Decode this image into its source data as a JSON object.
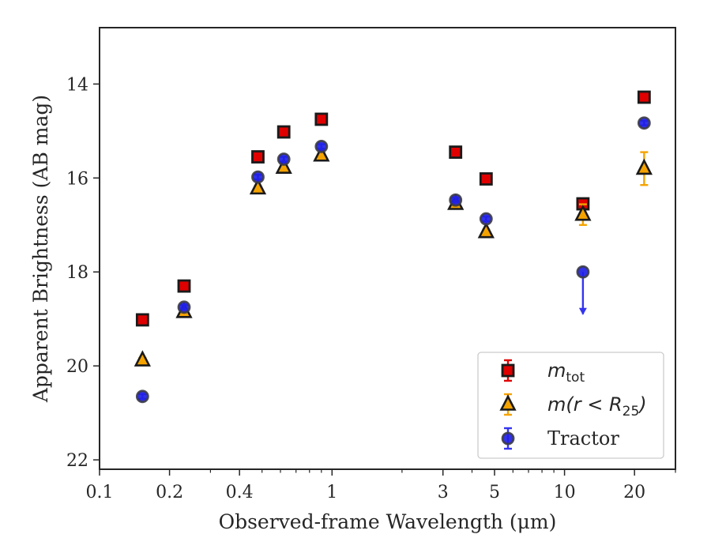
{
  "chart_data": {
    "type": "scatter",
    "xlabel": "Observed-frame Wavelength (μm)",
    "ylabel": "Apparent Brightness (AB mag)",
    "x_scale": "log",
    "y_inverted": true,
    "xlim": [
      0.1,
      30
    ],
    "ylim": [
      22.2,
      12.8
    ],
    "x_ticks": [
      {
        "value": 0.1,
        "label": "0.1"
      },
      {
        "value": 0.2,
        "label": "0.2"
      },
      {
        "value": 0.4,
        "label": "0.4"
      },
      {
        "value": 1,
        "label": "1"
      },
      {
        "value": 3,
        "label": "3"
      },
      {
        "value": 5,
        "label": "5"
      },
      {
        "value": 10,
        "label": "10"
      },
      {
        "value": 20,
        "label": "20"
      }
    ],
    "x_minor_ticks": [
      0.3,
      0.5,
      0.6,
      0.7,
      0.8,
      0.9,
      2,
      4,
      6,
      7,
      8,
      9,
      30
    ],
    "y_ticks": [
      {
        "value": 14,
        "label": "14"
      },
      {
        "value": 16,
        "label": "16"
      },
      {
        "value": 18,
        "label": "18"
      },
      {
        "value": 20,
        "label": "20"
      },
      {
        "value": 22,
        "label": "22"
      }
    ],
    "legend_position": "lower-right",
    "series": [
      {
        "key": "mtot",
        "legend": {
          "main": "m",
          "sub": "tot"
        },
        "marker": "square",
        "fill": "#e00000",
        "edge": "#1a1a1a",
        "errcolor": "#e00000",
        "points": [
          {
            "x": 0.153,
            "y": 19.02,
            "err": 0.05
          },
          {
            "x": 0.231,
            "y": 18.3,
            "err": 0.05
          },
          {
            "x": 0.48,
            "y": 15.55,
            "err": 0.05
          },
          {
            "x": 0.62,
            "y": 15.02,
            "err": 0.05
          },
          {
            "x": 0.9,
            "y": 14.75,
            "err": 0.05
          },
          {
            "x": 3.4,
            "y": 15.45,
            "err": 0.05
          },
          {
            "x": 4.6,
            "y": 16.02,
            "err": 0.05
          },
          {
            "x": 12.0,
            "y": 16.55,
            "err": 0.05
          },
          {
            "x": 22.0,
            "y": 14.28,
            "err": 0.05
          }
        ]
      },
      {
        "key": "mr25",
        "legend": {
          "main": "m(r < R",
          "sub": "25",
          "end": ")"
        },
        "marker": "triangle",
        "fill": "#f5a300",
        "edge": "#1a1a1a",
        "errcolor": "#f5a300",
        "points": [
          {
            "x": 0.153,
            "y": 19.88,
            "err": 0.05
          },
          {
            "x": 0.231,
            "y": 18.85,
            "err": 0.05
          },
          {
            "x": 0.48,
            "y": 16.22,
            "err": 0.05
          },
          {
            "x": 0.62,
            "y": 15.78,
            "err": 0.05
          },
          {
            "x": 0.9,
            "y": 15.52,
            "err": 0.05
          },
          {
            "x": 3.4,
            "y": 16.55,
            "err": 0.05
          },
          {
            "x": 4.6,
            "y": 17.15,
            "err": 0.05
          },
          {
            "x": 12.0,
            "y": 16.78,
            "err": 0.22
          },
          {
            "x": 22.0,
            "y": 15.8,
            "err": 0.35
          }
        ]
      },
      {
        "key": "tractor",
        "legend": {
          "main": "Tractor"
        },
        "marker": "circle",
        "fill": "#1f1fe6",
        "edge": "#3c3c46",
        "errcolor": "#3434f0",
        "points": [
          {
            "x": 0.153,
            "y": 20.65,
            "err": 0.05
          },
          {
            "x": 0.231,
            "y": 18.75,
            "err": 0.05
          },
          {
            "x": 0.48,
            "y": 15.98,
            "err": 0.05
          },
          {
            "x": 0.62,
            "y": 15.6,
            "err": 0.05
          },
          {
            "x": 0.9,
            "y": 15.33,
            "err": 0.05
          },
          {
            "x": 3.4,
            "y": 16.47,
            "err": 0.05
          },
          {
            "x": 4.6,
            "y": 16.87,
            "err": 0.05
          },
          {
            "x": 12.0,
            "y": 18.0,
            "upper_limit": true
          },
          {
            "x": 22.0,
            "y": 14.83,
            "err": 0.05
          }
        ]
      }
    ]
  }
}
